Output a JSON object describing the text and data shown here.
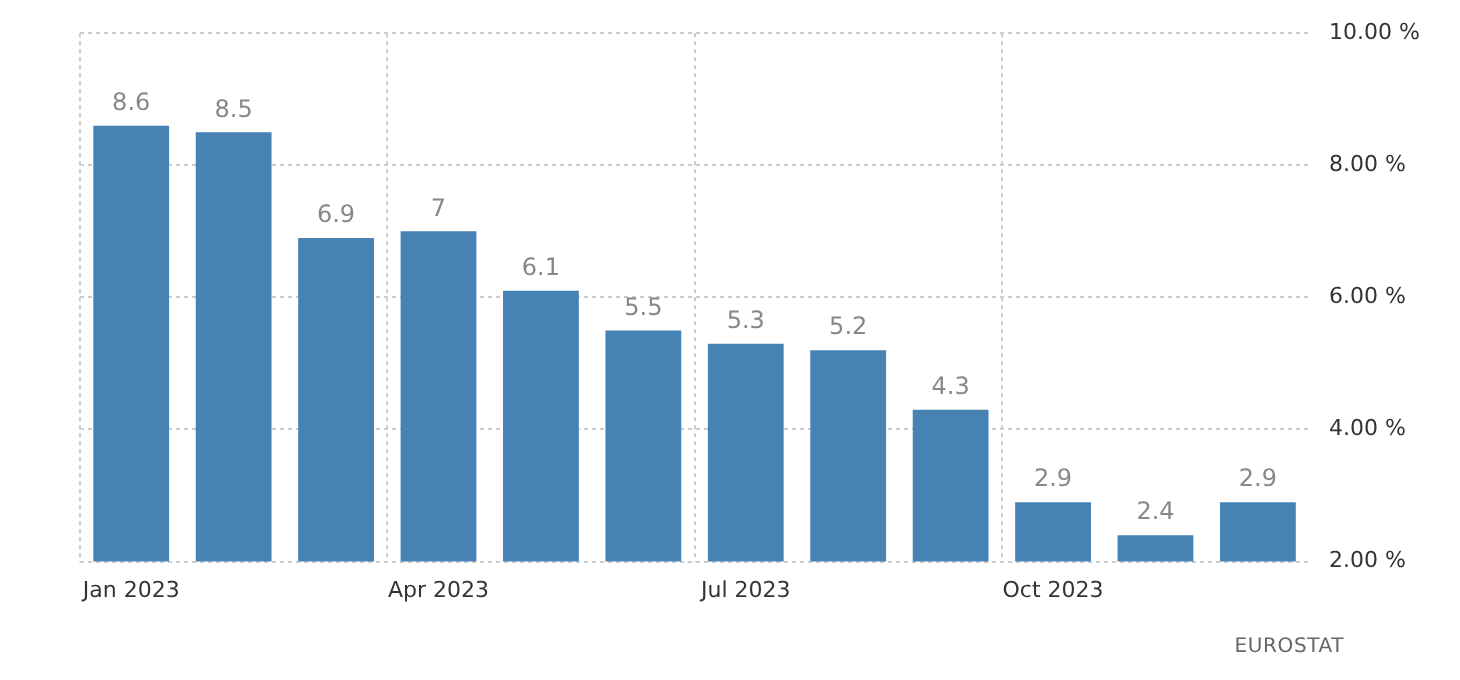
{
  "chart_data": {
    "type": "bar",
    "categories": [
      "Jan 2023",
      null,
      null,
      "Apr 2023",
      null,
      null,
      "Jul 2023",
      null,
      null,
      "Oct 2023",
      null,
      null
    ],
    "values": [
      8.6,
      8.5,
      6.9,
      7,
      6.1,
      5.5,
      5.3,
      5.2,
      4.3,
      2.9,
      2.4,
      2.9
    ],
    "color": "#4682b4",
    "ylim": [
      2,
      10
    ],
    "yticks": [
      {
        "value": 2,
        "label": "2.00 %"
      },
      {
        "value": 4,
        "label": "4.00 %"
      },
      {
        "value": 6,
        "label": "6.00 %"
      },
      {
        "value": 8,
        "label": "8.00 %"
      },
      {
        "value": 10,
        "label": "10.00 %"
      }
    ],
    "grid": true,
    "data_labels": true,
    "annotations": [
      "EUROSTAT"
    ]
  }
}
